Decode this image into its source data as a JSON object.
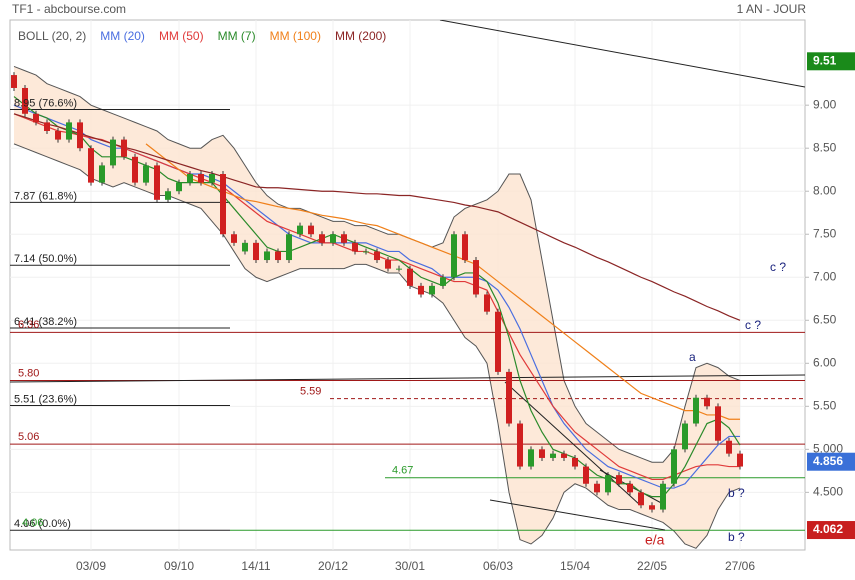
{
  "header": {
    "source": "TF1 - abcbourse.com",
    "period": "1 AN - JOUR"
  },
  "chart_data": {
    "type": "candlestick",
    "categories": [
      null,
      null,
      null,
      null,
      null,
      null,
      null,
      "03/09",
      null,
      null,
      null,
      null,
      null,
      null,
      null,
      "09/10",
      null,
      null,
      null,
      null,
      null,
      null,
      "14/11",
      null,
      null,
      null,
      null,
      null,
      null,
      "20/12",
      null,
      null,
      null,
      null,
      null,
      null,
      "30/01",
      null,
      null,
      null,
      null,
      null,
      null,
      null,
      "06/03",
      null,
      null,
      null,
      null,
      null,
      null,
      "15/04",
      null,
      null,
      null,
      null,
      null,
      null,
      "22/05",
      null,
      null,
      null,
      null,
      null,
      null,
      null,
      "27/06"
    ],
    "ohlc": {
      "up_color": "#2a9a2a",
      "down_color": "#d02020",
      "open": [
        9.35,
        9.2,
        8.9,
        8.8,
        8.7,
        8.6,
        8.8,
        8.5,
        8.1,
        8.3,
        8.6,
        8.4,
        8.1,
        8.3,
        7.9,
        8.0,
        8.1,
        8.2,
        8.1,
        8.2,
        7.5,
        7.3,
        7.4,
        7.2,
        7.3,
        7.2,
        7.5,
        7.6,
        7.5,
        7.4,
        7.5,
        7.4,
        7.3,
        7.3,
        7.2,
        7.1,
        7.1,
        6.9,
        6.8,
        6.9,
        7.0,
        7.5,
        7.2,
        6.8,
        6.6,
        5.9,
        5.3,
        4.8,
        5.0,
        4.9,
        4.95,
        4.9,
        4.8,
        4.6,
        4.5,
        4.7,
        4.6,
        4.5,
        4.35,
        4.3,
        4.6,
        5.0,
        5.3,
        5.6,
        5.5,
        5.1,
        4.95
      ],
      "close": [
        9.2,
        8.9,
        8.8,
        8.7,
        8.6,
        8.8,
        8.5,
        8.1,
        8.3,
        8.6,
        8.4,
        8.1,
        8.3,
        7.9,
        8.0,
        8.1,
        8.2,
        8.1,
        8.2,
        7.5,
        7.4,
        7.4,
        7.2,
        7.3,
        7.2,
        7.5,
        7.6,
        7.5,
        7.4,
        7.5,
        7.4,
        7.3,
        7.3,
        7.2,
        7.1,
        7.1,
        6.9,
        6.8,
        6.9,
        7.0,
        7.5,
        7.2,
        6.8,
        6.6,
        5.9,
        5.3,
        4.8,
        5.0,
        4.9,
        4.95,
        4.9,
        4.8,
        4.6,
        4.5,
        4.7,
        4.6,
        4.5,
        4.35,
        4.3,
        4.6,
        5.0,
        5.3,
        5.6,
        5.5,
        5.1,
        4.95,
        4.8
      ]
    },
    "bollinger": {
      "name": "BOLL (20, 2)",
      "color": "#555555",
      "fill": "#fde3d0",
      "upper": [
        9.45,
        9.4,
        9.35,
        9.25,
        9.2,
        9.15,
        9.1,
        9.0,
        8.95,
        8.9,
        8.85,
        8.8,
        8.75,
        8.7,
        8.6,
        8.55,
        8.5,
        8.5,
        8.6,
        8.65,
        8.5,
        8.3,
        8.1,
        7.95,
        7.85,
        7.8,
        7.8,
        7.75,
        7.7,
        7.65,
        7.65,
        7.6,
        7.6,
        7.55,
        7.5,
        7.5,
        7.45,
        7.4,
        7.35,
        7.4,
        7.7,
        7.8,
        7.85,
        7.9,
        8.0,
        8.2,
        8.2,
        7.9,
        7.2,
        6.5,
        5.8,
        5.5,
        5.3,
        5.2,
        5.1,
        5.0,
        4.95,
        4.9,
        4.85,
        4.85,
        5.0,
        5.5,
        5.95,
        6.0,
        5.95,
        5.85,
        5.8
      ],
      "lower": [
        8.55,
        8.5,
        8.45,
        8.4,
        8.35,
        8.3,
        8.25,
        8.15,
        8.1,
        8.05,
        8.1,
        8.05,
        8.0,
        7.95,
        7.95,
        7.9,
        7.85,
        7.8,
        7.65,
        7.5,
        7.3,
        7.1,
        7.0,
        6.95,
        7.0,
        7.05,
        7.1,
        7.1,
        7.1,
        7.1,
        7.1,
        7.15,
        7.15,
        7.1,
        7.05,
        7.05,
        6.9,
        6.85,
        6.8,
        6.7,
        6.5,
        6.3,
        6.2,
        6.0,
        5.3,
        4.5,
        3.95,
        3.9,
        4.0,
        4.2,
        4.5,
        4.6,
        4.55,
        4.45,
        4.35,
        4.3,
        4.3,
        4.25,
        4.2,
        4.15,
        4.05,
        3.9,
        3.85,
        4.0,
        4.3,
        4.5,
        4.55
      ]
    },
    "series": [
      {
        "name": "MM (20)",
        "color": "#4a6ee0",
        "values": [
          9.0,
          8.95,
          8.9,
          8.85,
          8.8,
          8.75,
          8.7,
          8.6,
          8.55,
          8.5,
          8.5,
          8.45,
          8.4,
          8.35,
          8.3,
          8.25,
          8.2,
          8.2,
          8.15,
          8.1,
          8.0,
          7.9,
          7.8,
          7.7,
          7.6,
          7.5,
          7.45,
          7.4,
          7.4,
          7.4,
          7.4,
          7.4,
          7.4,
          7.35,
          7.3,
          7.3,
          7.2,
          7.15,
          7.1,
          7.0,
          7.0,
          7.0,
          7.0,
          6.95,
          6.85,
          6.65,
          6.4,
          6.1,
          5.8,
          5.5,
          5.3,
          5.15,
          5.0,
          4.9,
          4.8,
          4.75,
          4.7,
          4.65,
          4.6,
          4.55,
          4.55,
          4.6,
          4.75,
          4.9,
          5.05,
          5.15,
          5.15
        ]
      },
      {
        "name": "MM (50)",
        "color": "#e03a3a",
        "values": [
          8.9,
          8.85,
          8.8,
          8.75,
          8.7,
          8.68,
          8.65,
          8.62,
          8.6,
          8.55,
          8.5,
          8.45,
          8.4,
          8.35,
          8.3,
          8.25,
          8.2,
          8.15,
          8.1,
          8.05,
          7.95,
          7.85,
          7.75,
          7.65,
          7.6,
          7.55,
          7.5,
          7.45,
          7.4,
          7.4,
          7.35,
          7.3,
          7.3,
          7.25,
          7.2,
          7.2,
          7.15,
          7.1,
          7.05,
          7.0,
          6.95,
          6.95,
          6.9,
          6.85,
          6.6,
          6.35,
          6.1,
          5.9,
          5.7,
          5.5,
          5.35,
          5.2,
          5.1,
          5.0,
          4.9,
          4.8,
          4.75,
          4.7,
          4.65,
          4.65,
          4.7,
          4.75,
          4.8,
          4.82,
          4.82,
          4.8,
          4.8
        ]
      },
      {
        "name": "MM (7)",
        "color": "#2a8a2a",
        "values": [
          9.1,
          9.0,
          8.9,
          8.85,
          8.75,
          8.7,
          8.65,
          8.5,
          8.4,
          8.4,
          8.4,
          8.35,
          8.3,
          8.25,
          8.15,
          8.1,
          8.1,
          8.1,
          8.1,
          7.95,
          7.8,
          7.65,
          7.5,
          7.35,
          7.3,
          7.3,
          7.35,
          7.4,
          7.45,
          7.5,
          7.45,
          7.4,
          7.35,
          7.3,
          7.25,
          7.2,
          7.1,
          7.0,
          6.95,
          6.9,
          7.0,
          7.05,
          7.05,
          6.95,
          6.7,
          6.3,
          5.8,
          5.45,
          5.2,
          5.0,
          4.95,
          4.9,
          4.8,
          4.7,
          4.65,
          4.6,
          4.6,
          4.5,
          4.45,
          4.45,
          4.6,
          4.8,
          5.05,
          5.3,
          5.35,
          5.25,
          5.05
        ]
      },
      {
        "name": "MM (100)",
        "color": "#f0801a",
        "values": [
          null,
          null,
          null,
          null,
          null,
          null,
          null,
          null,
          null,
          null,
          null,
          null,
          8.55,
          8.45,
          8.35,
          8.25,
          8.15,
          8.1,
          8.05,
          8.0,
          7.95,
          7.9,
          7.88,
          7.85,
          7.82,
          7.8,
          7.78,
          7.75,
          7.72,
          7.7,
          7.68,
          7.65,
          7.62,
          7.6,
          7.55,
          7.5,
          7.45,
          7.4,
          7.35,
          7.3,
          7.25,
          7.2,
          7.15,
          7.05,
          6.95,
          6.85,
          6.75,
          6.65,
          6.55,
          6.45,
          6.35,
          6.25,
          6.15,
          6.05,
          5.95,
          5.85,
          5.75,
          5.65,
          5.6,
          5.55,
          5.5,
          5.45,
          5.45,
          5.4,
          5.4,
          5.35,
          5.35
        ]
      },
      {
        "name": "MM (200)",
        "color": "#8b2525",
        "values": [
          8.9,
          8.86,
          8.82,
          8.78,
          8.75,
          8.71,
          8.67,
          8.63,
          8.59,
          8.55,
          8.51,
          8.48,
          8.44,
          8.4,
          8.36,
          8.32,
          8.28,
          8.24,
          8.21,
          8.17,
          8.13,
          8.09,
          8.05,
          8.04,
          8.04,
          8.03,
          8.02,
          8.01,
          8.0,
          8.0,
          7.99,
          7.98,
          7.97,
          7.97,
          7.96,
          7.95,
          7.95,
          7.93,
          7.91,
          7.89,
          7.87,
          7.84,
          7.82,
          7.79,
          7.76,
          7.7,
          7.64,
          7.58,
          7.52,
          7.46,
          7.4,
          7.35,
          7.29,
          7.23,
          7.18,
          7.12,
          7.06,
          7.0,
          6.95,
          6.89,
          6.83,
          6.78,
          6.72,
          6.66,
          6.61,
          6.55,
          6.5
        ]
      }
    ],
    "legend_order": [
      "bollinger",
      0,
      1,
      2,
      3,
      4
    ],
    "ylim": [
      3.83,
      9.99
    ],
    "yticks": [
      {
        "value": 4.5,
        "label": "4.500"
      },
      {
        "value": 5,
        "label": "5.000"
      },
      {
        "value": 5.5,
        "label": "5.50"
      },
      {
        "value": 6,
        "label": "6.00"
      },
      {
        "value": 6.5,
        "label": "6.50"
      },
      {
        "value": 7,
        "label": "7.00"
      },
      {
        "value": 7.5,
        "label": "7.50"
      },
      {
        "value": 8,
        "label": "8.00"
      },
      {
        "value": 8.5,
        "label": "8.50"
      },
      {
        "value": 9,
        "label": "9.00"
      }
    ],
    "grid": true,
    "fib_levels": [
      {
        "value": 8.95,
        "label": "8.95 (76.6%)"
      },
      {
        "value": 7.87,
        "label": "7.87 (61.8%)"
      },
      {
        "value": 7.14,
        "label": "7.14 (50.0%)"
      },
      {
        "value": 6.41,
        "label": "6.41 (38.2%)"
      },
      {
        "value": 5.51,
        "label": "5.51 (23.6%)"
      },
      {
        "value": 4.06,
        "label": "4.06 (0.0%)"
      }
    ],
    "red_levels": {
      "color": "#a01818",
      "levels": [
        6.36,
        {
          "value": 5.8,
          "label": "5.80"
        },
        5.06,
        5.59
      ]
    },
    "green_levels": {
      "color": "#2a9a2a",
      "levels": [
        4.67,
        4.06
      ]
    },
    "price_tags": [
      {
        "value": 9.51,
        "color": "#1a8a1a"
      },
      {
        "value": 4.856,
        "color": "#3a70d8"
      },
      {
        "value": 4.062,
        "color": "#c81e1e"
      }
    ],
    "annotations": [
      {
        "text": "c ?",
        "color": "#1a237e"
      },
      {
        "text": "c ?",
        "color": "#1a237e"
      },
      {
        "text": "a",
        "color": "#1a237e"
      },
      {
        "text": "b ?",
        "color": "#1a237e"
      },
      {
        "text": "b ?",
        "color": "#1a237e"
      },
      {
        "text": "e/a",
        "color": "#c81e1e"
      }
    ]
  }
}
